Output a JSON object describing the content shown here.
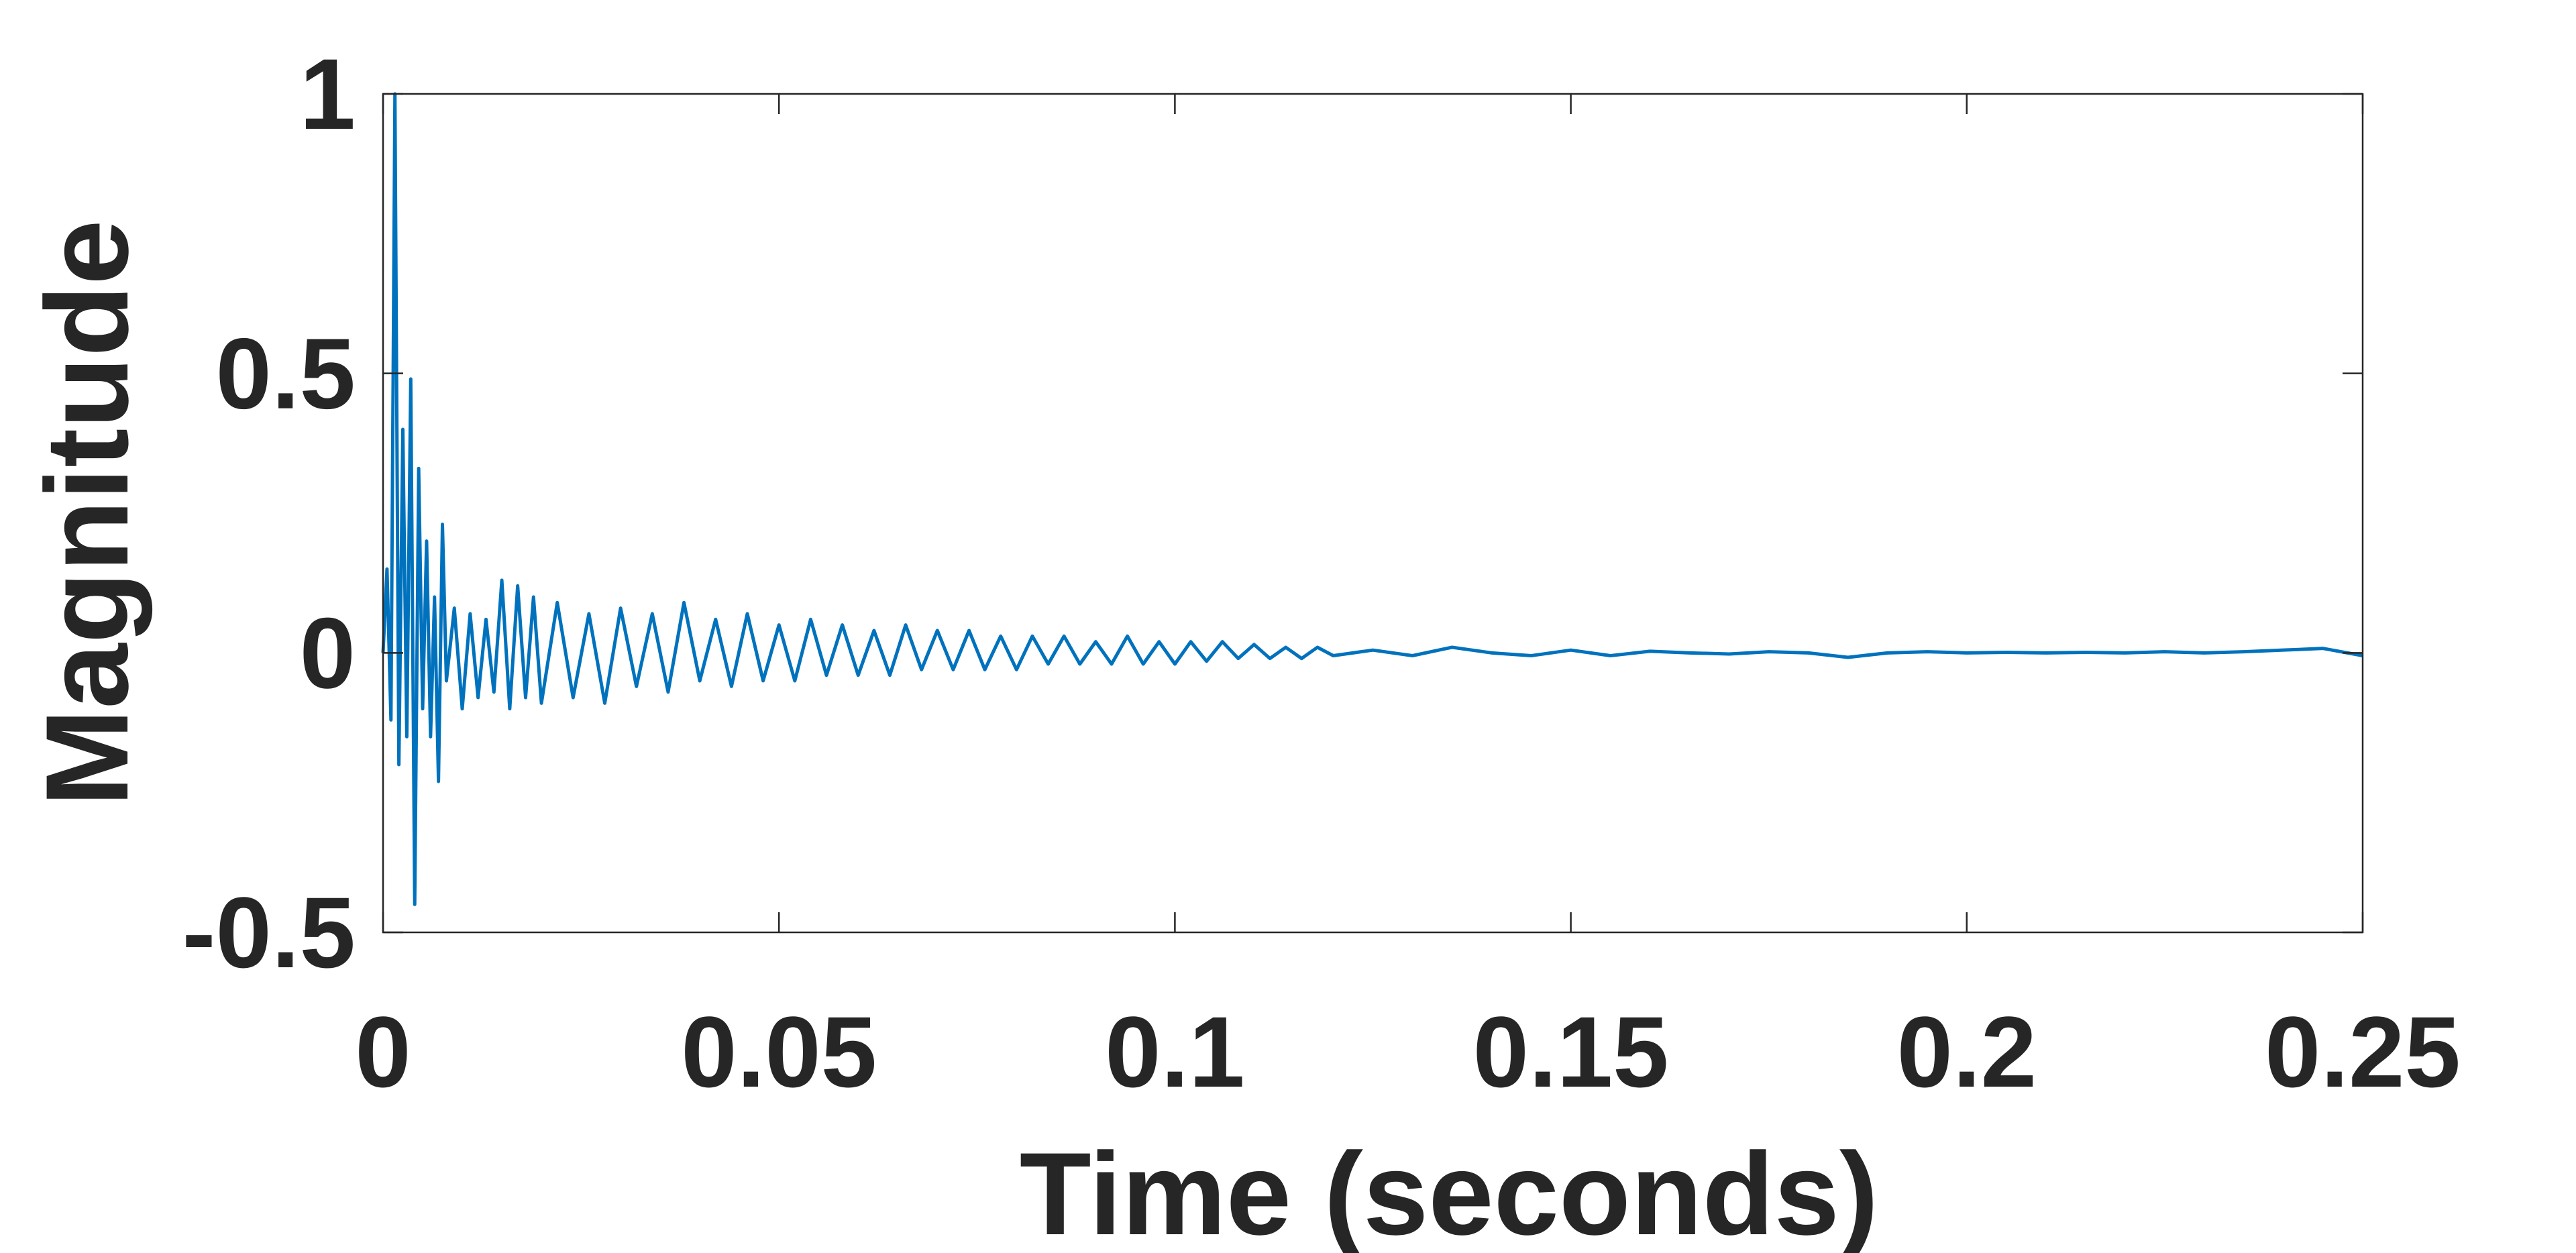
{
  "chart_data": {
    "type": "line",
    "xlabel": "Time (seconds)",
    "ylabel": "Magnitude",
    "x": [
      0,
      0.0005,
      0.001,
      0.0015,
      0.002,
      0.0025,
      0.003,
      0.0035,
      0.004,
      0.0045,
      0.005,
      0.0055,
      0.006,
      0.0065,
      0.007,
      0.0075,
      0.008,
      0.009,
      0.01,
      0.011,
      0.012,
      0.013,
      0.014,
      0.015,
      0.016,
      0.017,
      0.018,
      0.019,
      0.02,
      0.022,
      0.024,
      0.026,
      0.028,
      0.03,
      0.032,
      0.034,
      0.036,
      0.038,
      0.04,
      0.042,
      0.044,
      0.046,
      0.048,
      0.05,
      0.052,
      0.054,
      0.056,
      0.058,
      0.06,
      0.062,
      0.064,
      0.066,
      0.068,
      0.07,
      0.072,
      0.074,
      0.076,
      0.078,
      0.08,
      0.082,
      0.084,
      0.086,
      0.088,
      0.09,
      0.092,
      0.094,
      0.096,
      0.098,
      0.1,
      0.102,
      0.104,
      0.106,
      0.108,
      0.11,
      0.112,
      0.114,
      0.116,
      0.118,
      0.12,
      0.125,
      0.13,
      0.135,
      0.14,
      0.145,
      0.15,
      0.155,
      0.16,
      0.165,
      0.17,
      0.175,
      0.18,
      0.185,
      0.19,
      0.195,
      0.2,
      0.205,
      0.21,
      0.215,
      0.22,
      0.225,
      0.23,
      0.235,
      0.24,
      0.245,
      0.25
    ],
    "values": [
      0,
      0.15,
      -0.12,
      1.0,
      -0.2,
      0.4,
      -0.15,
      0.49,
      -0.45,
      0.33,
      -0.1,
      0.2,
      -0.15,
      0.1,
      -0.23,
      0.23,
      -0.05,
      0.08,
      -0.1,
      0.07,
      -0.08,
      0.06,
      -0.07,
      0.13,
      -0.1,
      0.12,
      -0.08,
      0.1,
      -0.09,
      0.09,
      -0.08,
      0.07,
      -0.09,
      0.08,
      -0.06,
      0.07,
      -0.07,
      0.09,
      -0.05,
      0.06,
      -0.06,
      0.07,
      -0.05,
      0.05,
      -0.05,
      0.06,
      -0.04,
      0.05,
      -0.04,
      0.04,
      -0.04,
      0.05,
      -0.03,
      0.04,
      -0.03,
      0.04,
      -0.03,
      0.03,
      -0.03,
      0.03,
      -0.02,
      0.03,
      -0.02,
      0.02,
      -0.02,
      0.03,
      -0.02,
      0.02,
      -0.02,
      0.02,
      -0.015,
      0.02,
      -0.01,
      0.015,
      -0.01,
      0.01,
      -0.01,
      0.01,
      -0.005,
      0.005,
      -0.005,
      0.01,
      0,
      -0.005,
      0.005,
      -0.005,
      0.003,
      0,
      -0.002,
      0.002,
      0,
      -0.008,
      0,
      0.002,
      0,
      0.001,
      0,
      0.001,
      0,
      0.002,
      0,
      0.002,
      0.005,
      0.008,
      -0.005
    ],
    "color": "#0072bd",
    "xlim": [
      0,
      0.25
    ],
    "xticks": [
      0,
      0.05,
      0.1,
      0.15,
      0.2,
      0.25
    ],
    "ylim": [
      -0.5,
      1
    ],
    "yticks": [
      -0.5,
      0,
      0.5,
      1
    ],
    "grid": false
  }
}
